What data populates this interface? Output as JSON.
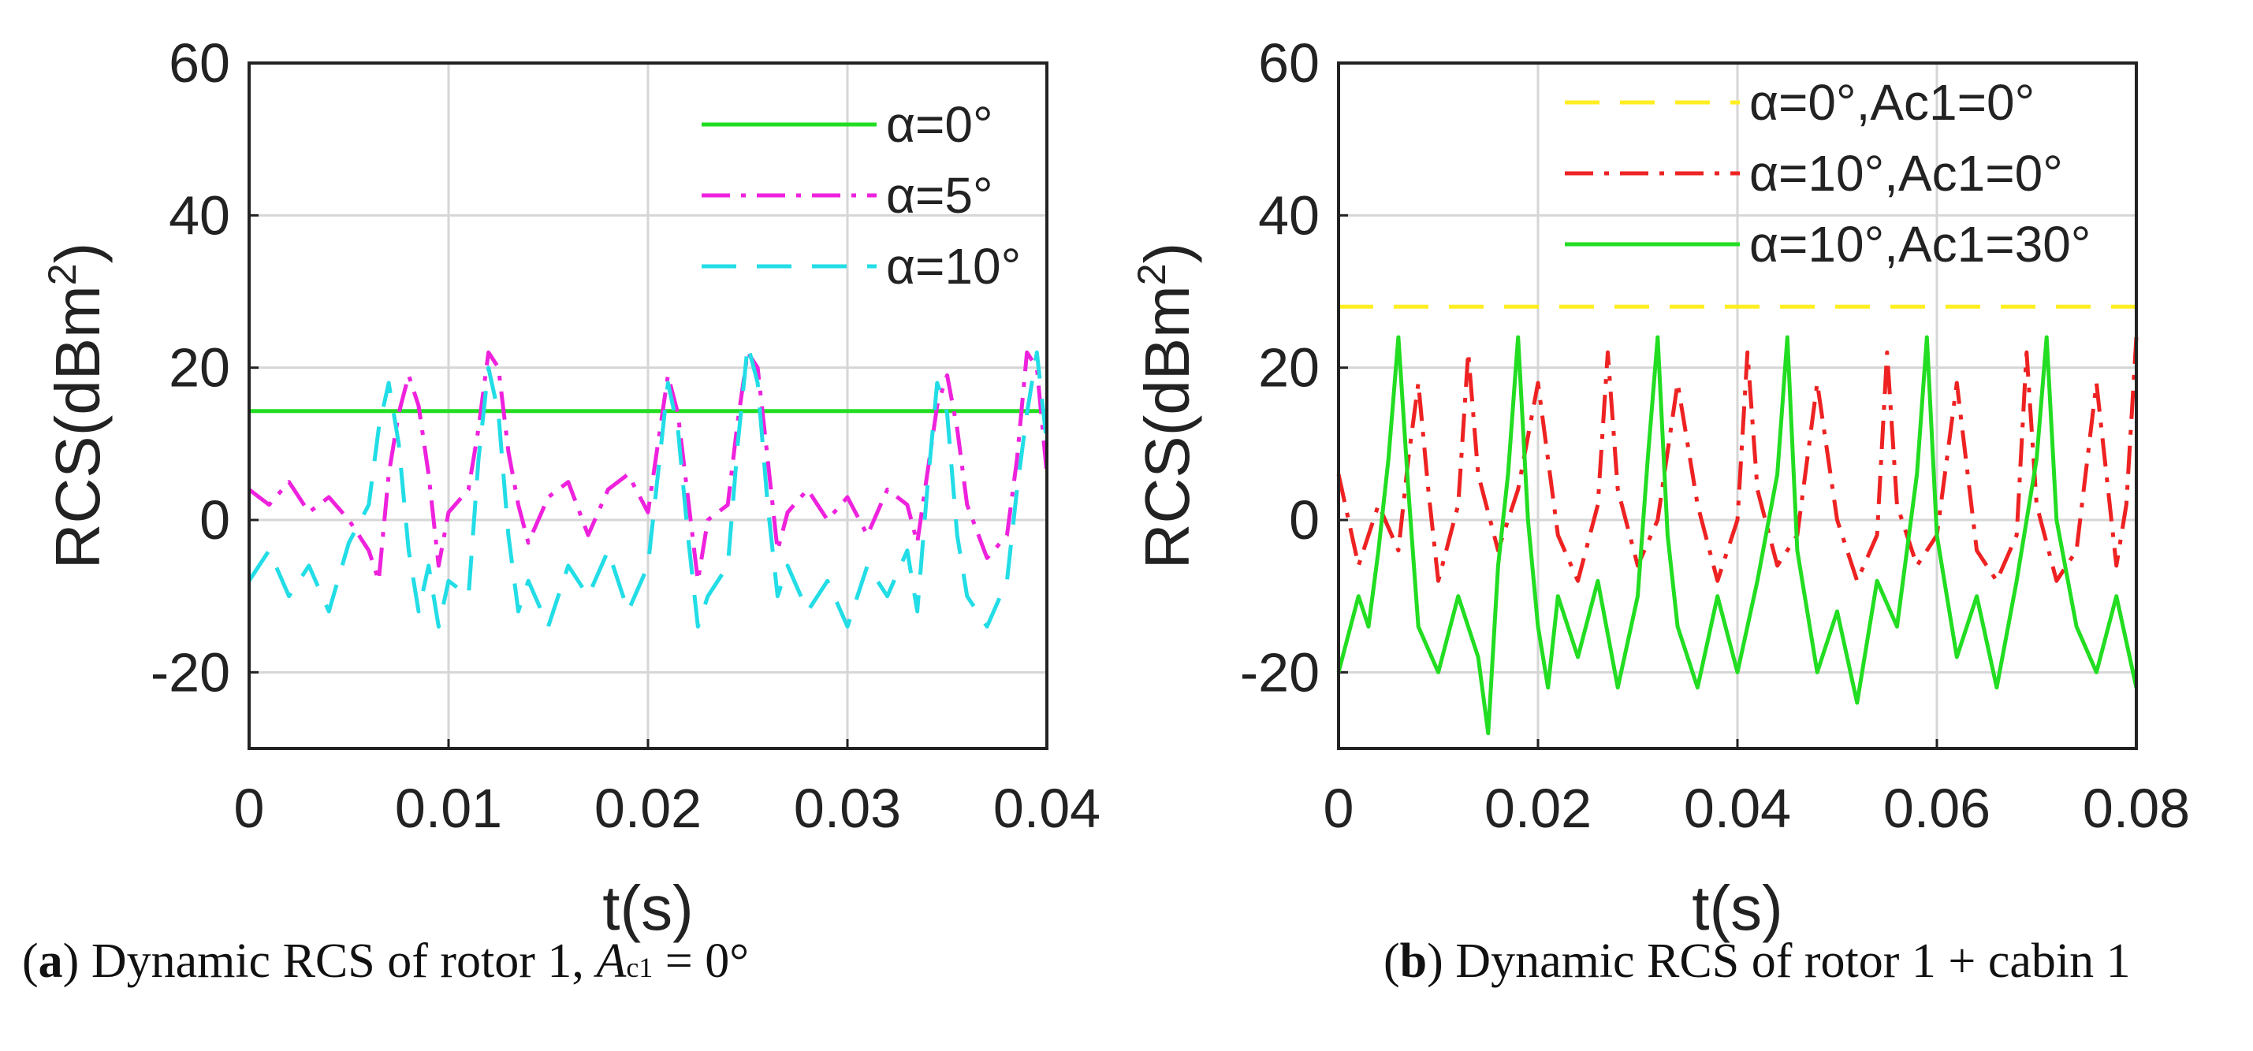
{
  "chart_data": [
    {
      "type": "line",
      "panel": "a",
      "xlabel": "t(s)",
      "ylabel_base": "RCS(dBm",
      "ylabel_sup": "2",
      "ylabel_end": ")",
      "xlim": [
        0,
        0.04
      ],
      "ylim": [
        -30,
        60
      ],
      "xticks": [
        0,
        0.01,
        0.02,
        0.03,
        0.04
      ],
      "xtick_labels": [
        "0",
        "0.01",
        "0.02",
        "0.03",
        "0.04"
      ],
      "yticks": [
        -20,
        0,
        20,
        40,
        60
      ],
      "ytick_labels": [
        "-20",
        "0",
        "20",
        "40",
        "60"
      ],
      "grid": true,
      "legend_position": "top-right",
      "series": [
        {
          "name": "α=0°",
          "color": "#22dd22",
          "style": "solid",
          "x": [
            0,
            0.04
          ],
          "y": [
            14.3,
            14.3
          ]
        },
        {
          "name": "α=5°",
          "color": "#ee22dd",
          "style": "dashdot",
          "x": [
            0,
            0.001,
            0.002,
            0.003,
            0.004,
            0.005,
            0.006,
            0.0065,
            0.007,
            0.0075,
            0.008,
            0.0085,
            0.009,
            0.0095,
            0.01,
            0.011,
            0.0115,
            0.012,
            0.0125,
            0.013,
            0.0135,
            0.014,
            0.015,
            0.016,
            0.017,
            0.018,
            0.019,
            0.02,
            0.0205,
            0.021,
            0.0215,
            0.022,
            0.0225,
            0.023,
            0.024,
            0.0245,
            0.025,
            0.0255,
            0.026,
            0.0265,
            0.027,
            0.028,
            0.029,
            0.03,
            0.031,
            0.032,
            0.033,
            0.0335,
            0.034,
            0.0345,
            0.035,
            0.0355,
            0.036,
            0.037,
            0.038,
            0.0385,
            0.039,
            0.0395,
            0.04
          ],
          "y": [
            4,
            2,
            5,
            1,
            3,
            0,
            -4,
            -8,
            6,
            14,
            19,
            15,
            6,
            -6,
            1,
            4,
            12,
            22,
            20,
            9,
            2,
            -3,
            3,
            5,
            -2,
            4,
            6,
            1,
            10,
            19,
            14,
            3,
            -8,
            0,
            2,
            13,
            22,
            20,
            8,
            -4,
            1,
            4,
            0,
            3,
            -2,
            4,
            2,
            -3,
            6,
            15,
            19,
            12,
            2,
            -5,
            -2,
            8,
            22,
            20,
            6
          ]
        },
        {
          "name": "α=10°",
          "color": "#22dde6",
          "style": "dashed",
          "x": [
            0,
            0.001,
            0.002,
            0.003,
            0.004,
            0.005,
            0.006,
            0.0065,
            0.007,
            0.0075,
            0.008,
            0.0085,
            0.009,
            0.0095,
            0.01,
            0.011,
            0.0115,
            0.012,
            0.0125,
            0.013,
            0.0135,
            0.014,
            0.015,
            0.016,
            0.017,
            0.018,
            0.019,
            0.02,
            0.0205,
            0.021,
            0.0215,
            0.022,
            0.0225,
            0.023,
            0.024,
            0.0245,
            0.025,
            0.0255,
            0.026,
            0.0265,
            0.027,
            0.028,
            0.029,
            0.03,
            0.031,
            0.032,
            0.033,
            0.0335,
            0.034,
            0.0345,
            0.035,
            0.0355,
            0.036,
            0.037,
            0.038,
            0.0385,
            0.039,
            0.0395,
            0.04
          ],
          "y": [
            -8,
            -4,
            -10,
            -6,
            -12,
            -3,
            2,
            12,
            18,
            10,
            -4,
            -12,
            -6,
            -14,
            -8,
            -10,
            8,
            20,
            14,
            -2,
            -12,
            -8,
            -14,
            -6,
            -10,
            -4,
            -12,
            -6,
            6,
            18,
            12,
            -2,
            -14,
            -10,
            -6,
            10,
            23,
            18,
            2,
            -10,
            -6,
            -12,
            -8,
            -14,
            -6,
            -10,
            -4,
            -12,
            4,
            18,
            14,
            -2,
            -10,
            -14,
            -8,
            4,
            14,
            22,
            10
          ]
        }
      ]
    },
    {
      "type": "line",
      "panel": "b",
      "xlabel": "t(s)",
      "ylabel_base": "RCS(dBm",
      "ylabel_sup": "2",
      "ylabel_end": ")",
      "xlim": [
        0,
        0.08
      ],
      "ylim": [
        -30,
        60
      ],
      "xticks": [
        0,
        0.02,
        0.04,
        0.06,
        0.08
      ],
      "xtick_labels": [
        "0",
        "0.02",
        "0.04",
        "0.06",
        "0.08"
      ],
      "yticks": [
        -20,
        0,
        20,
        40,
        60
      ],
      "ytick_labels": [
        "-20",
        "0",
        "20",
        "40",
        "60"
      ],
      "grid": true,
      "legend_position": "top-right",
      "series": [
        {
          "name": "α=0°,Ac1=0°",
          "color": "#ffee22",
          "style": "dashed",
          "x": [
            0,
            0.08
          ],
          "y": [
            28,
            28
          ]
        },
        {
          "name": "α=10°,Ac1=0°",
          "color": "#ee2222",
          "style": "dashdot",
          "x": [
            0,
            0.002,
            0.004,
            0.006,
            0.007,
            0.008,
            0.009,
            0.01,
            0.012,
            0.013,
            0.014,
            0.016,
            0.018,
            0.02,
            0.022,
            0.024,
            0.026,
            0.027,
            0.028,
            0.03,
            0.032,
            0.034,
            0.036,
            0.038,
            0.04,
            0.041,
            0.042,
            0.044,
            0.046,
            0.048,
            0.05,
            0.052,
            0.054,
            0.055,
            0.056,
            0.058,
            0.06,
            0.062,
            0.064,
            0.066,
            0.068,
            0.069,
            0.07,
            0.072,
            0.074,
            0.076,
            0.078,
            0.079,
            0.08
          ],
          "y": [
            6,
            -6,
            2,
            -4,
            8,
            18,
            4,
            -8,
            2,
            22,
            6,
            -4,
            4,
            18,
            -2,
            -8,
            2,
            22,
            4,
            -6,
            0,
            18,
            2,
            -8,
            0,
            22,
            4,
            -6,
            -2,
            18,
            0,
            -8,
            -2,
            22,
            2,
            -6,
            -2,
            18,
            -4,
            -8,
            -2,
            22,
            2,
            -8,
            -4,
            18,
            -6,
            2,
            24
          ]
        },
        {
          "name": "α=10°,Ac1=30°",
          "color": "#22dd22",
          "style": "solid",
          "x": [
            0,
            0.002,
            0.003,
            0.004,
            0.005,
            0.006,
            0.007,
            0.008,
            0.01,
            0.012,
            0.014,
            0.015,
            0.016,
            0.017,
            0.018,
            0.019,
            0.02,
            0.021,
            0.022,
            0.024,
            0.026,
            0.028,
            0.03,
            0.031,
            0.032,
            0.033,
            0.034,
            0.036,
            0.038,
            0.04,
            0.042,
            0.044,
            0.045,
            0.046,
            0.048,
            0.05,
            0.052,
            0.054,
            0.056,
            0.058,
            0.059,
            0.06,
            0.062,
            0.064,
            0.066,
            0.068,
            0.07,
            0.071,
            0.072,
            0.074,
            0.076,
            0.078,
            0.08
          ],
          "y": [
            -20,
            -10,
            -14,
            -4,
            8,
            24,
            4,
            -14,
            -20,
            -10,
            -18,
            -28,
            -6,
            6,
            24,
            0,
            -14,
            -22,
            -10,
            -18,
            -8,
            -22,
            -10,
            8,
            24,
            -2,
            -14,
            -22,
            -10,
            -20,
            -8,
            6,
            24,
            -4,
            -20,
            -12,
            -24,
            -8,
            -14,
            6,
            24,
            -2,
            -18,
            -10,
            -22,
            -8,
            8,
            24,
            0,
            -14,
            -20,
            -10,
            -22
          ]
        }
      ]
    }
  ],
  "captions": {
    "a": {
      "letter": "a",
      "open": "(",
      "close": ")",
      "text": " Dynamic RCS of rotor 1, ",
      "var": "A",
      "sub": "c1",
      "suffix": " = 0°"
    },
    "b": {
      "letter": "b",
      "open": "(",
      "close": ")",
      "text": " Dynamic RCS of rotor 1 + cabin 1"
    }
  }
}
